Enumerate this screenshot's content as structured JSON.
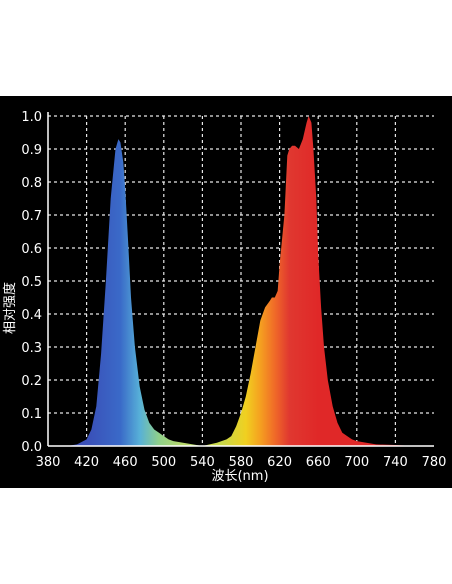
{
  "chart_data": {
    "type": "area",
    "title": "",
    "xlabel": "波长(nm)",
    "ylabel": "相对强度",
    "xlim": [
      380,
      780
    ],
    "ylim": [
      0,
      1.0
    ],
    "x_ticks": [
      "380",
      "420",
      "460",
      "500",
      "540",
      "580",
      "620",
      "660",
      "700",
      "740",
      "780"
    ],
    "y_ticks": [
      "0.0",
      "0.1",
      "0.2",
      "0.3",
      "0.4",
      "0.5",
      "0.6",
      "0.7",
      "0.8",
      "0.9",
      "1.0"
    ],
    "grid": true,
    "legend": "none",
    "series": [
      {
        "x": [
          400,
          410,
          420,
          425,
          430,
          435,
          440,
          445,
          450,
          453,
          455,
          458,
          460,
          463,
          466,
          470,
          475,
          480,
          485,
          490,
          495,
          500,
          505,
          510,
          520,
          530,
          540
        ],
        "y": [
          0.0,
          0.005,
          0.02,
          0.05,
          0.12,
          0.28,
          0.5,
          0.75,
          0.9,
          0.93,
          0.92,
          0.86,
          0.78,
          0.62,
          0.45,
          0.3,
          0.18,
          0.11,
          0.07,
          0.05,
          0.04,
          0.03,
          0.02,
          0.015,
          0.01,
          0.005,
          0.0
        ],
        "color_stops": [
          {
            "x": 420,
            "color": "#3a4fb8"
          },
          {
            "x": 455,
            "color": "#3a6ac8"
          },
          {
            "x": 475,
            "color": "#57b0d8"
          },
          {
            "x": 495,
            "color": "#8fd08a"
          },
          {
            "x": 520,
            "color": "#b8d86a"
          }
        ]
      },
      {
        "x": [
          540,
          555,
          565,
          570,
          575,
          580,
          585,
          590,
          595,
          600,
          605,
          610,
          612,
          615,
          618,
          620,
          625,
          628,
          630,
          633,
          636,
          640,
          644,
          648,
          650,
          653,
          655,
          658,
          660,
          663,
          666,
          670,
          675,
          680,
          685,
          690,
          695,
          700,
          710,
          720,
          740,
          760
        ],
        "y": [
          0.0,
          0.01,
          0.02,
          0.03,
          0.06,
          0.1,
          0.15,
          0.22,
          0.3,
          0.38,
          0.42,
          0.44,
          0.45,
          0.45,
          0.47,
          0.55,
          0.7,
          0.88,
          0.9,
          0.91,
          0.91,
          0.9,
          0.93,
          0.98,
          1.0,
          0.98,
          0.9,
          0.75,
          0.58,
          0.42,
          0.3,
          0.2,
          0.12,
          0.07,
          0.04,
          0.03,
          0.02,
          0.015,
          0.01,
          0.005,
          0.003,
          0.0
        ],
        "color_stops": [
          {
            "x": 560,
            "color": "#c8d84a"
          },
          {
            "x": 585,
            "color": "#f0d020"
          },
          {
            "x": 600,
            "color": "#f5a020"
          },
          {
            "x": 615,
            "color": "#f06a28"
          },
          {
            "x": 630,
            "color": "#e03830"
          },
          {
            "x": 660,
            "color": "#e02828"
          }
        ]
      }
    ]
  }
}
